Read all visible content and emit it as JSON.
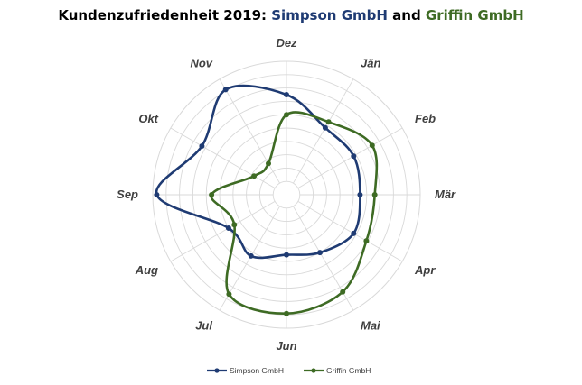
{
  "title": {
    "prefix": "Kundenzufriedenheit 2019: ",
    "series1": "Simpson GmbH",
    "mid": " and ",
    "series2": "Griffin GmbH"
  },
  "chart_data": {
    "type": "radar",
    "title": "Kundenzufriedenheit 2019: Simpson GmbH and Griffin GmbH",
    "categories": [
      "Jän",
      "Feb",
      "Mär",
      "Apr",
      "Mai",
      "Jun",
      "Jul",
      "Aug",
      "Sep",
      "Okt",
      "Nov",
      "Dez"
    ],
    "rlim": [
      0,
      10
    ],
    "grid": true,
    "legend": "bottom",
    "series": [
      {
        "name": "Simpson GmbH",
        "color": "#1F3B73",
        "values": [
          5.8,
          5.8,
          5.5,
          5.8,
          5.0,
          4.5,
          5.3,
          5.0,
          9.7,
          7.3,
          9.1,
          7.5
        ]
      },
      {
        "name": "Griffin GmbH",
        "color": "#3E6B24",
        "values": [
          6.3,
          7.4,
          6.6,
          6.9,
          8.4,
          8.9,
          8.6,
          4.5,
          5.6,
          2.8,
          2.7,
          6.0
        ]
      }
    ]
  }
}
